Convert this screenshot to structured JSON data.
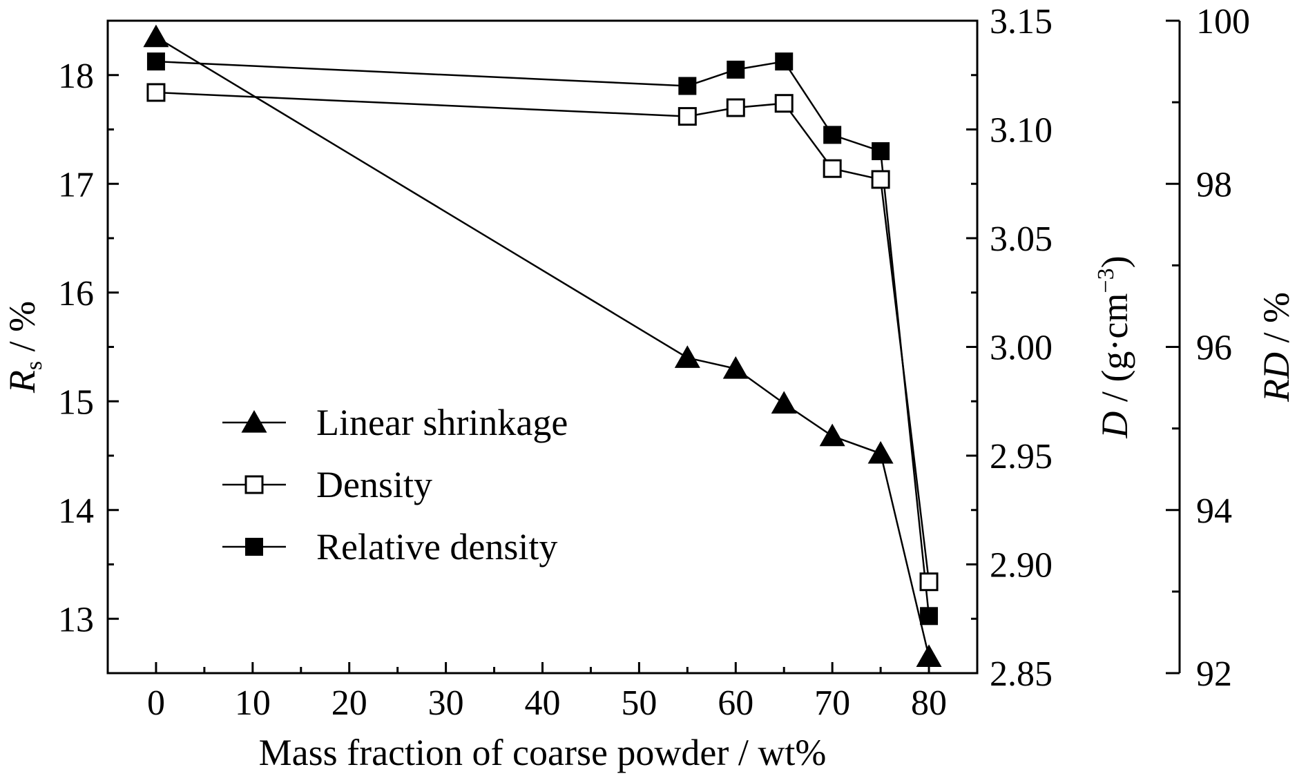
{
  "chart_data": {
    "type": "line",
    "x": [
      0,
      55,
      60,
      65,
      70,
      75,
      80
    ],
    "xlabel": "Mass fraction of coarse powder / wt%",
    "xlim": [
      -5,
      85
    ],
    "xticks": [
      0,
      10,
      20,
      30,
      40,
      50,
      60,
      70,
      80
    ],
    "axes": {
      "left": {
        "label_italic": "R",
        "label_sub": "s",
        "label_rest": " / %",
        "range": [
          12.5,
          18.5
        ],
        "ticks": [
          13,
          14,
          15,
          16,
          17,
          18
        ],
        "tick_labels": [
          "13",
          "14",
          "15",
          "16",
          "17",
          "18"
        ]
      },
      "right1": {
        "label_italic": "D",
        "label_rest": " / (g·cm",
        "label_sup": "−3",
        "label_close": ")",
        "range": [
          2.85,
          3.15
        ],
        "ticks": [
          2.85,
          2.9,
          2.95,
          3.0,
          3.05,
          3.1,
          3.15
        ],
        "tick_labels": [
          "2.85",
          "2.90",
          "2.95",
          "3.00",
          "3.05",
          "3.10",
          "3.15"
        ]
      },
      "right2": {
        "label_italic": "RD",
        "label_rest": " / %",
        "range": [
          92,
          100
        ],
        "ticks": [
          92,
          94,
          96,
          98,
          100
        ],
        "tick_labels": [
          "92",
          "94",
          "96",
          "98",
          "100"
        ]
      }
    },
    "series": [
      {
        "name": "Linear shrinkage",
        "axis": "left",
        "marker": "triangle-filled",
        "values": [
          18.35,
          15.4,
          15.3,
          14.98,
          14.68,
          14.52,
          12.65
        ]
      },
      {
        "name": "Density",
        "axis": "right1",
        "marker": "square-open",
        "values": [
          3.117,
          3.106,
          3.11,
          3.112,
          3.082,
          3.077,
          2.892
        ]
      },
      {
        "name": "Relative density",
        "axis": "right2",
        "marker": "square-filled",
        "values": [
          99.5,
          99.2,
          99.4,
          99.5,
          98.6,
          98.4,
          92.7
        ]
      }
    ],
    "legend_position": "lower-left",
    "grid": false
  }
}
